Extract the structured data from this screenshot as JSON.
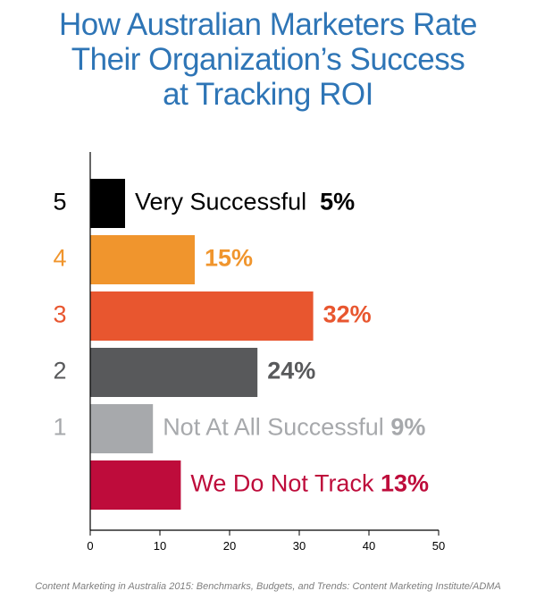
{
  "title_lines": [
    "How Australian Marketers Rate",
    "Their Organization’s Success",
    "at Tracking ROI"
  ],
  "source": "Content Marketing in Australia 2015: Benchmarks, Budgets, and Trends: Content Marketing Institute/ADMA",
  "chart_data": {
    "type": "bar",
    "orientation": "horizontal",
    "categories": [
      "5",
      "4",
      "3",
      "2",
      "1",
      ""
    ],
    "values": [
      5,
      15,
      32,
      24,
      9,
      13
    ],
    "annotations": [
      "Very Successful",
      "",
      "",
      "",
      "Not At All Successful",
      "We Do Not Track"
    ],
    "value_labels": [
      "5%",
      "15%",
      "32%",
      "24%",
      "9%",
      "13%"
    ],
    "colors": [
      "#000000",
      "#f0952d",
      "#e8562f",
      "#58595b",
      "#a7a9ac",
      "#be0c3b"
    ],
    "category_label_colors": [
      "#000000",
      "#f0952d",
      "#e8562f",
      "#58595b",
      "#a7a9ac",
      "#be0c3b"
    ],
    "annotation_colors": [
      "#000000",
      "#f0952d",
      "#e8562f",
      "#58595b",
      "#a7a9ac",
      "#be0c3b"
    ],
    "value_label_colors": [
      "#000000",
      "#f0952d",
      "#e8562f",
      "#58595b",
      "#a7a9ac",
      "#be0c3b"
    ],
    "xlim": [
      0,
      50
    ],
    "xticks": [
      0,
      10,
      20,
      30,
      40,
      50
    ],
    "xlabel": "",
    "ylabel": "",
    "grid": false
  }
}
